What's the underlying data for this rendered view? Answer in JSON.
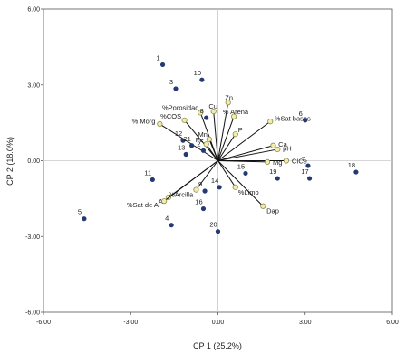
{
  "chart_data": {
    "type": "scatter",
    "subtype": "PCA biplot",
    "xlabel": "CP 1 (25.2%)",
    "ylabel": "CP 2 (18.0%)",
    "xlim": [
      -6.0,
      6.0
    ],
    "ylim": [
      -6.0,
      6.0
    ],
    "x_ticks": [
      -6.0,
      -3.0,
      0.0,
      3.0,
      6.0
    ],
    "y_ticks": [
      -6.0,
      -3.0,
      0.0,
      3.0,
      6.0
    ],
    "x_tick_labels": [
      "-6.00",
      "-3.00",
      "0.00",
      "3.00",
      "6.00"
    ],
    "y_tick_labels": [
      "-6.00",
      "-3.00",
      "0.00",
      "3.00",
      "6.00"
    ],
    "grid": false,
    "colors": {
      "observation_point": "#243a73",
      "vector_line": "#111111",
      "vector_tip_fill": "#f2ecae",
      "vector_tip_stroke": "#8e8a4a",
      "zero_line": "#c8c8c8",
      "frame": "#555555"
    },
    "observations": [
      {
        "label": "1",
        "x": -1.9,
        "y": 3.8
      },
      {
        "label": "2",
        "x": -0.5,
        "y": 0.4
      },
      {
        "label": "3",
        "x": -1.45,
        "y": 2.85
      },
      {
        "label": "4",
        "x": -1.6,
        "y": -2.55
      },
      {
        "label": "5",
        "x": -4.6,
        "y": -2.3
      },
      {
        "label": "6",
        "x": 3.0,
        "y": 1.6
      },
      {
        "label": "7",
        "x": 3.1,
        "y": -0.2
      },
      {
        "label": "8",
        "x": -0.4,
        "y": 1.7
      },
      {
        "label": "9",
        "x": -0.45,
        "y": -1.2
      },
      {
        "label": "10",
        "x": -0.55,
        "y": 3.2
      },
      {
        "label": "11",
        "x": -2.25,
        "y": -0.75
      },
      {
        "label": "12",
        "x": -1.2,
        "y": 0.8
      },
      {
        "label": "13",
        "x": -1.1,
        "y": 0.25
      },
      {
        "label": "14",
        "x": 0.05,
        "y": -1.05
      },
      {
        "label": "15",
        "x": 0.95,
        "y": -0.5
      },
      {
        "label": "16",
        "x": -0.5,
        "y": -1.9
      },
      {
        "label": "17",
        "x": 3.15,
        "y": -0.7
      },
      {
        "label": "18",
        "x": 4.75,
        "y": -0.45
      },
      {
        "label": "19",
        "x": 2.05,
        "y": -0.7
      },
      {
        "label": "20",
        "x": 0.0,
        "y": -2.8
      },
      {
        "label": "21",
        "x": -0.9,
        "y": 0.6
      }
    ],
    "vectors": [
      {
        "label": "%Porosidad",
        "x": -0.6,
        "y": 1.9
      },
      {
        "label": "%COS",
        "x": -1.15,
        "y": 1.6
      },
      {
        "label": "% Morg",
        "x": -2.0,
        "y": 1.45
      },
      {
        "label": "Cu",
        "x": -0.15,
        "y": 1.95
      },
      {
        "label": "Zn",
        "x": 0.35,
        "y": 2.3
      },
      {
        "label": "% Arena",
        "x": 0.55,
        "y": 1.75
      },
      {
        "label": "%Sat bases",
        "x": 1.8,
        "y": 1.55
      },
      {
        "label": "P",
        "x": 0.6,
        "y": 1.05
      },
      {
        "label": "Mn",
        "x": -0.3,
        "y": 0.85
      },
      {
        "label": "Fe",
        "x": -0.4,
        "y": 0.65
      },
      {
        "label": "Ca",
        "x": 1.9,
        "y": 0.6
      },
      {
        "label": "pH",
        "x": 2.05,
        "y": 0.45
      },
      {
        "label": "CICe",
        "x": 2.35,
        "y": 0.0
      },
      {
        "label": "Mg",
        "x": 1.7,
        "y": -0.05
      },
      {
        "label": "Al",
        "x": -1.7,
        "y": -1.45
      },
      {
        "label": "%Sat de Al",
        "x": -1.85,
        "y": -1.6
      },
      {
        "label": "%Arcilla",
        "x": -0.75,
        "y": -1.15
      },
      {
        "label": "%Limo",
        "x": 0.6,
        "y": -1.05
      },
      {
        "label": "Dap",
        "x": 1.55,
        "y": -1.8
      }
    ]
  }
}
